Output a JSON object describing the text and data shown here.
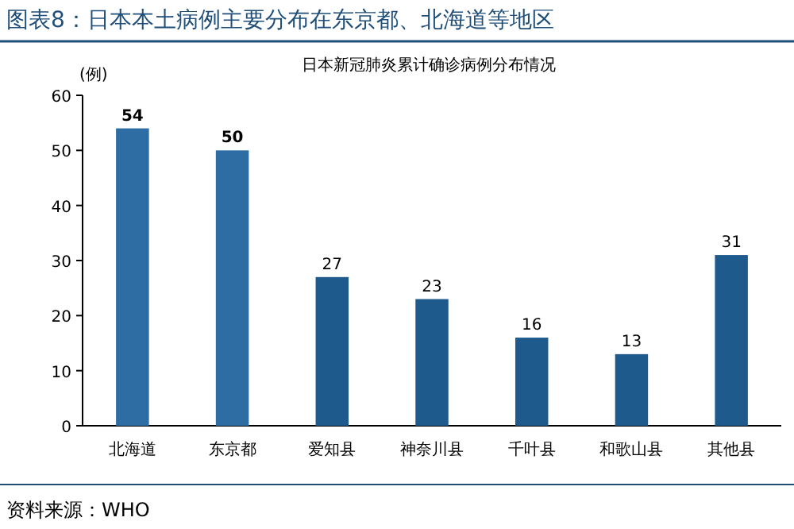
{
  "chart_data": {
    "type": "bar",
    "title": "图表8：日本本土病例主要分布在东京都、北海道等地区",
    "subtitle": "日本新冠肺炎累计确诊病例分布情况",
    "ylabel": "(例)",
    "categories": [
      "北海道",
      "东京都",
      "爱知县",
      "神奈川县",
      "千叶县",
      "和歌山县",
      "其他县"
    ],
    "values": [
      54,
      50,
      27,
      23,
      16,
      13,
      31
    ],
    "colors": [
      "#2e6da4",
      "#2e6da4",
      "#1f5a8c",
      "#1f5a8c",
      "#1f5a8c",
      "#1f5a8c",
      "#1f5a8c"
    ],
    "ylim": [
      0,
      60
    ],
    "yticks": [
      0,
      10,
      20,
      30,
      40,
      50,
      60
    ],
    "data_labels": true,
    "grid": false,
    "annotations": [
      "资料来源：WHO"
    ]
  }
}
